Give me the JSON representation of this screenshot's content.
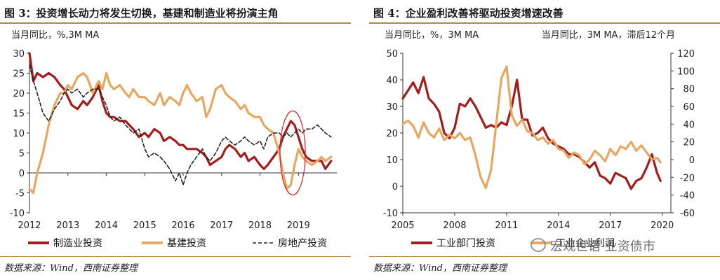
{
  "chart_data": [
    {
      "type": "line",
      "title": "图 3：投资增长动力将发生切换，基建和制造业将扮演主角",
      "source": "数据来源：Wind，西南证券整理",
      "ylabel": "当月同比，%,3M MA",
      "ylim": [
        -10,
        30
      ],
      "yticks": [
        -10,
        -5,
        0,
        5,
        10,
        15,
        20,
        25,
        30
      ],
      "xlim": [
        2012,
        2020
      ],
      "xticks": [
        "2012",
        "2013",
        "2014",
        "2015",
        "2016",
        "2017",
        "2018",
        "2019"
      ],
      "grid": false,
      "legend": "bottom",
      "highlight": {
        "x": 2018.85,
        "y": 5,
        "label": ""
      },
      "series": [
        {
          "name": "制造业投资",
          "color": "#a51c1c",
          "style": "solid",
          "x": [
            2012.0,
            2012.1,
            2012.2,
            2012.35,
            2012.5,
            2012.65,
            2012.8,
            2012.9,
            2013.0,
            2013.1,
            2013.25,
            2013.4,
            2013.5,
            2013.65,
            2013.8,
            2013.9,
            2014.0,
            2014.1,
            2014.2,
            2014.35,
            2014.5,
            2014.6,
            2014.7,
            2014.85,
            2015.0,
            2015.1,
            2015.25,
            2015.4,
            2015.5,
            2015.65,
            2015.8,
            2015.9,
            2016.0,
            2016.1,
            2016.2,
            2016.35,
            2016.5,
            2016.6,
            2016.7,
            2016.85,
            2017.0,
            2017.1,
            2017.2,
            2017.35,
            2017.5,
            2017.6,
            2017.7,
            2017.85,
            2018.0,
            2018.1,
            2018.2,
            2018.35,
            2018.5,
            2018.6,
            2018.7,
            2018.8,
            2018.9,
            2019.0,
            2019.1,
            2019.2,
            2019.35,
            2019.5,
            2019.6,
            2019.7,
            2019.85
          ],
          "y": [
            30,
            23,
            25,
            24,
            25,
            24,
            22,
            21,
            19,
            17,
            16,
            18,
            17,
            19,
            22,
            18,
            15,
            14,
            14,
            13,
            13,
            12,
            11,
            9,
            10,
            9,
            11,
            10,
            8,
            9,
            8,
            7,
            7,
            6,
            6,
            6,
            5,
            4,
            2,
            3,
            4,
            6,
            7,
            6,
            4,
            5,
            3,
            4,
            2,
            1,
            2,
            4,
            6,
            9,
            11,
            13,
            12,
            9,
            6,
            4,
            3,
            3,
            3,
            1,
            3
          ]
        },
        {
          "name": "基建投资",
          "color": "#e8a760",
          "style": "solid",
          "x": [
            2012.0,
            2012.1,
            2012.2,
            2012.35,
            2012.5,
            2012.65,
            2012.8,
            2012.9,
            2013.0,
            2013.1,
            2013.25,
            2013.4,
            2013.5,
            2013.65,
            2013.8,
            2013.9,
            2014.0,
            2014.1,
            2014.2,
            2014.35,
            2014.5,
            2014.6,
            2014.7,
            2014.85,
            2015.0,
            2015.1,
            2015.25,
            2015.4,
            2015.5,
            2015.65,
            2015.8,
            2015.9,
            2016.0,
            2016.1,
            2016.2,
            2016.35,
            2016.5,
            2016.6,
            2016.7,
            2016.85,
            2017.0,
            2017.1,
            2017.2,
            2017.35,
            2017.5,
            2017.6,
            2017.7,
            2017.85,
            2018.0,
            2018.1,
            2018.2,
            2018.35,
            2018.5,
            2018.6,
            2018.7,
            2018.8,
            2018.9,
            2019.0,
            2019.1,
            2019.2,
            2019.35,
            2019.5,
            2019.6,
            2019.7,
            2019.85
          ],
          "y": [
            -4,
            -5,
            0,
            5,
            12,
            17,
            20,
            20,
            22,
            21,
            24,
            25,
            24,
            20,
            23,
            21,
            25,
            22,
            21,
            22,
            20,
            19,
            21,
            19,
            19,
            18,
            17,
            20,
            17,
            19,
            18,
            17,
            20,
            22,
            20,
            18,
            19,
            14,
            16,
            21,
            22,
            20,
            19,
            18,
            16,
            17,
            15,
            14,
            14,
            12,
            11,
            10,
            5,
            0,
            -4,
            -3,
            2,
            6,
            4,
            3,
            2,
            3,
            4,
            3,
            4
          ]
        },
        {
          "name": "房地产投资",
          "color": "#222222",
          "style": "dashed",
          "x": [
            2012.0,
            2012.1,
            2012.2,
            2012.35,
            2012.5,
            2012.65,
            2012.8,
            2012.9,
            2013.0,
            2013.1,
            2013.25,
            2013.4,
            2013.5,
            2013.65,
            2013.8,
            2013.9,
            2014.0,
            2014.1,
            2014.2,
            2014.35,
            2014.5,
            2014.6,
            2014.7,
            2014.85,
            2015.0,
            2015.1,
            2015.25,
            2015.4,
            2015.5,
            2015.65,
            2015.8,
            2015.9,
            2016.0,
            2016.1,
            2016.2,
            2016.35,
            2016.5,
            2016.6,
            2016.7,
            2016.85,
            2017.0,
            2017.1,
            2017.2,
            2017.35,
            2017.5,
            2017.6,
            2017.7,
            2017.85,
            2018.0,
            2018.1,
            2018.2,
            2018.35,
            2018.5,
            2018.6,
            2018.7,
            2018.8,
            2018.9,
            2019.0,
            2019.1,
            2019.2,
            2019.35,
            2019.5,
            2019.6,
            2019.7,
            2019.85
          ],
          "y": [
            27,
            23,
            20,
            15,
            13,
            16,
            18,
            20,
            21,
            20,
            21,
            19,
            20,
            21,
            21,
            19,
            17,
            14,
            13,
            14,
            12,
            11,
            10,
            11,
            6,
            4,
            5,
            4,
            3,
            1,
            -2,
            0,
            -3,
            0,
            2,
            4,
            6,
            4,
            3,
            5,
            8,
            9,
            8,
            7,
            8,
            9,
            8,
            7,
            8,
            6,
            9,
            10,
            10,
            9,
            10,
            9,
            10,
            11,
            10,
            11,
            11,
            12,
            11,
            10,
            9
          ]
        }
      ]
    },
    {
      "type": "line",
      "title": "图 4：企业盈利改善将驱动投资增速改善",
      "source": "数据来源：Wind，西南证券整理",
      "ylabel": "当月同比，%，3M MA",
      "y2label": "当月同比，3M MA，滞后12个月",
      "ylim": [
        -10,
        50
      ],
      "yticks": [
        -10,
        0,
        10,
        20,
        30,
        40,
        50
      ],
      "y2lim": [
        -60,
        120
      ],
      "y2ticks": [
        -60,
        -40,
        -20,
        0,
        20,
        40,
        60,
        80,
        100,
        120
      ],
      "xlim": [
        2005,
        2020.5
      ],
      "xticks": [
        "2005",
        "2008",
        "2011",
        "2014",
        "2017",
        "2020"
      ],
      "grid": false,
      "legend": "bottom",
      "series": [
        {
          "name": "工业部门投资",
          "color": "#a51c1c",
          "style": "solid",
          "axis": "left",
          "x": [
            2005.0,
            2005.3,
            2005.6,
            2005.9,
            2006.2,
            2006.5,
            2006.8,
            2007.1,
            2007.4,
            2007.7,
            2008.0,
            2008.3,
            2008.6,
            2008.9,
            2009.2,
            2009.5,
            2009.8,
            2010.1,
            2010.4,
            2010.7,
            2011.0,
            2011.3,
            2011.6,
            2011.9,
            2012.2,
            2012.5,
            2012.8,
            2013.1,
            2013.4,
            2013.7,
            2014.0,
            2014.3,
            2014.6,
            2014.9,
            2015.2,
            2015.5,
            2015.8,
            2016.1,
            2016.4,
            2016.7,
            2017.0,
            2017.3,
            2017.6,
            2017.9,
            2018.2,
            2018.5,
            2018.8,
            2019.1,
            2019.4,
            2019.7,
            2019.9
          ],
          "y": [
            33,
            36,
            39,
            35,
            41,
            33,
            31,
            28,
            20,
            18,
            22,
            31,
            30,
            33,
            30,
            26,
            22,
            23,
            22,
            24,
            23,
            30,
            40,
            25,
            25,
            19,
            20,
            22,
            18,
            16,
            15,
            14,
            12,
            12,
            11,
            9,
            7,
            9,
            4,
            3,
            1,
            5,
            4,
            3,
            -1,
            2,
            3,
            7,
            12,
            5,
            2
          ]
        },
        {
          "name": "工业企业利润",
          "color": "#e8a760",
          "style": "solid",
          "axis": "right",
          "x": [
            2005.0,
            2005.3,
            2005.6,
            2005.9,
            2006.2,
            2006.5,
            2006.8,
            2007.1,
            2007.4,
            2007.7,
            2008.0,
            2008.3,
            2008.6,
            2008.9,
            2009.2,
            2009.5,
            2009.8,
            2010.1,
            2010.4,
            2010.7,
            2011.0,
            2011.3,
            2011.6,
            2011.9,
            2012.2,
            2012.5,
            2012.8,
            2013.1,
            2013.4,
            2013.7,
            2014.0,
            2014.3,
            2014.6,
            2014.9,
            2015.2,
            2015.5,
            2015.8,
            2016.1,
            2016.4,
            2016.7,
            2017.0,
            2017.3,
            2017.6,
            2017.9,
            2018.2,
            2018.5,
            2018.8,
            2019.1,
            2019.4,
            2019.7,
            2019.9
          ],
          "y": [
            40,
            44,
            38,
            25,
            42,
            30,
            25,
            35,
            22,
            28,
            24,
            30,
            22,
            25,
            5,
            -20,
            -32,
            -12,
            40,
            92,
            105,
            50,
            38,
            45,
            32,
            30,
            22,
            25,
            18,
            22,
            12,
            10,
            2,
            8,
            5,
            -5,
            0,
            10,
            5,
            -2,
            12,
            5,
            15,
            12,
            20,
            10,
            16,
            8,
            0,
            2,
            -3
          ]
        }
      ]
    }
  ],
  "legends": [
    [
      "制造业投资",
      "基建投资",
      "房地产投资"
    ],
    [
      "工业部门投资",
      "工业企业利润"
    ]
  ],
  "watermark": "宏观世语 业资债市"
}
